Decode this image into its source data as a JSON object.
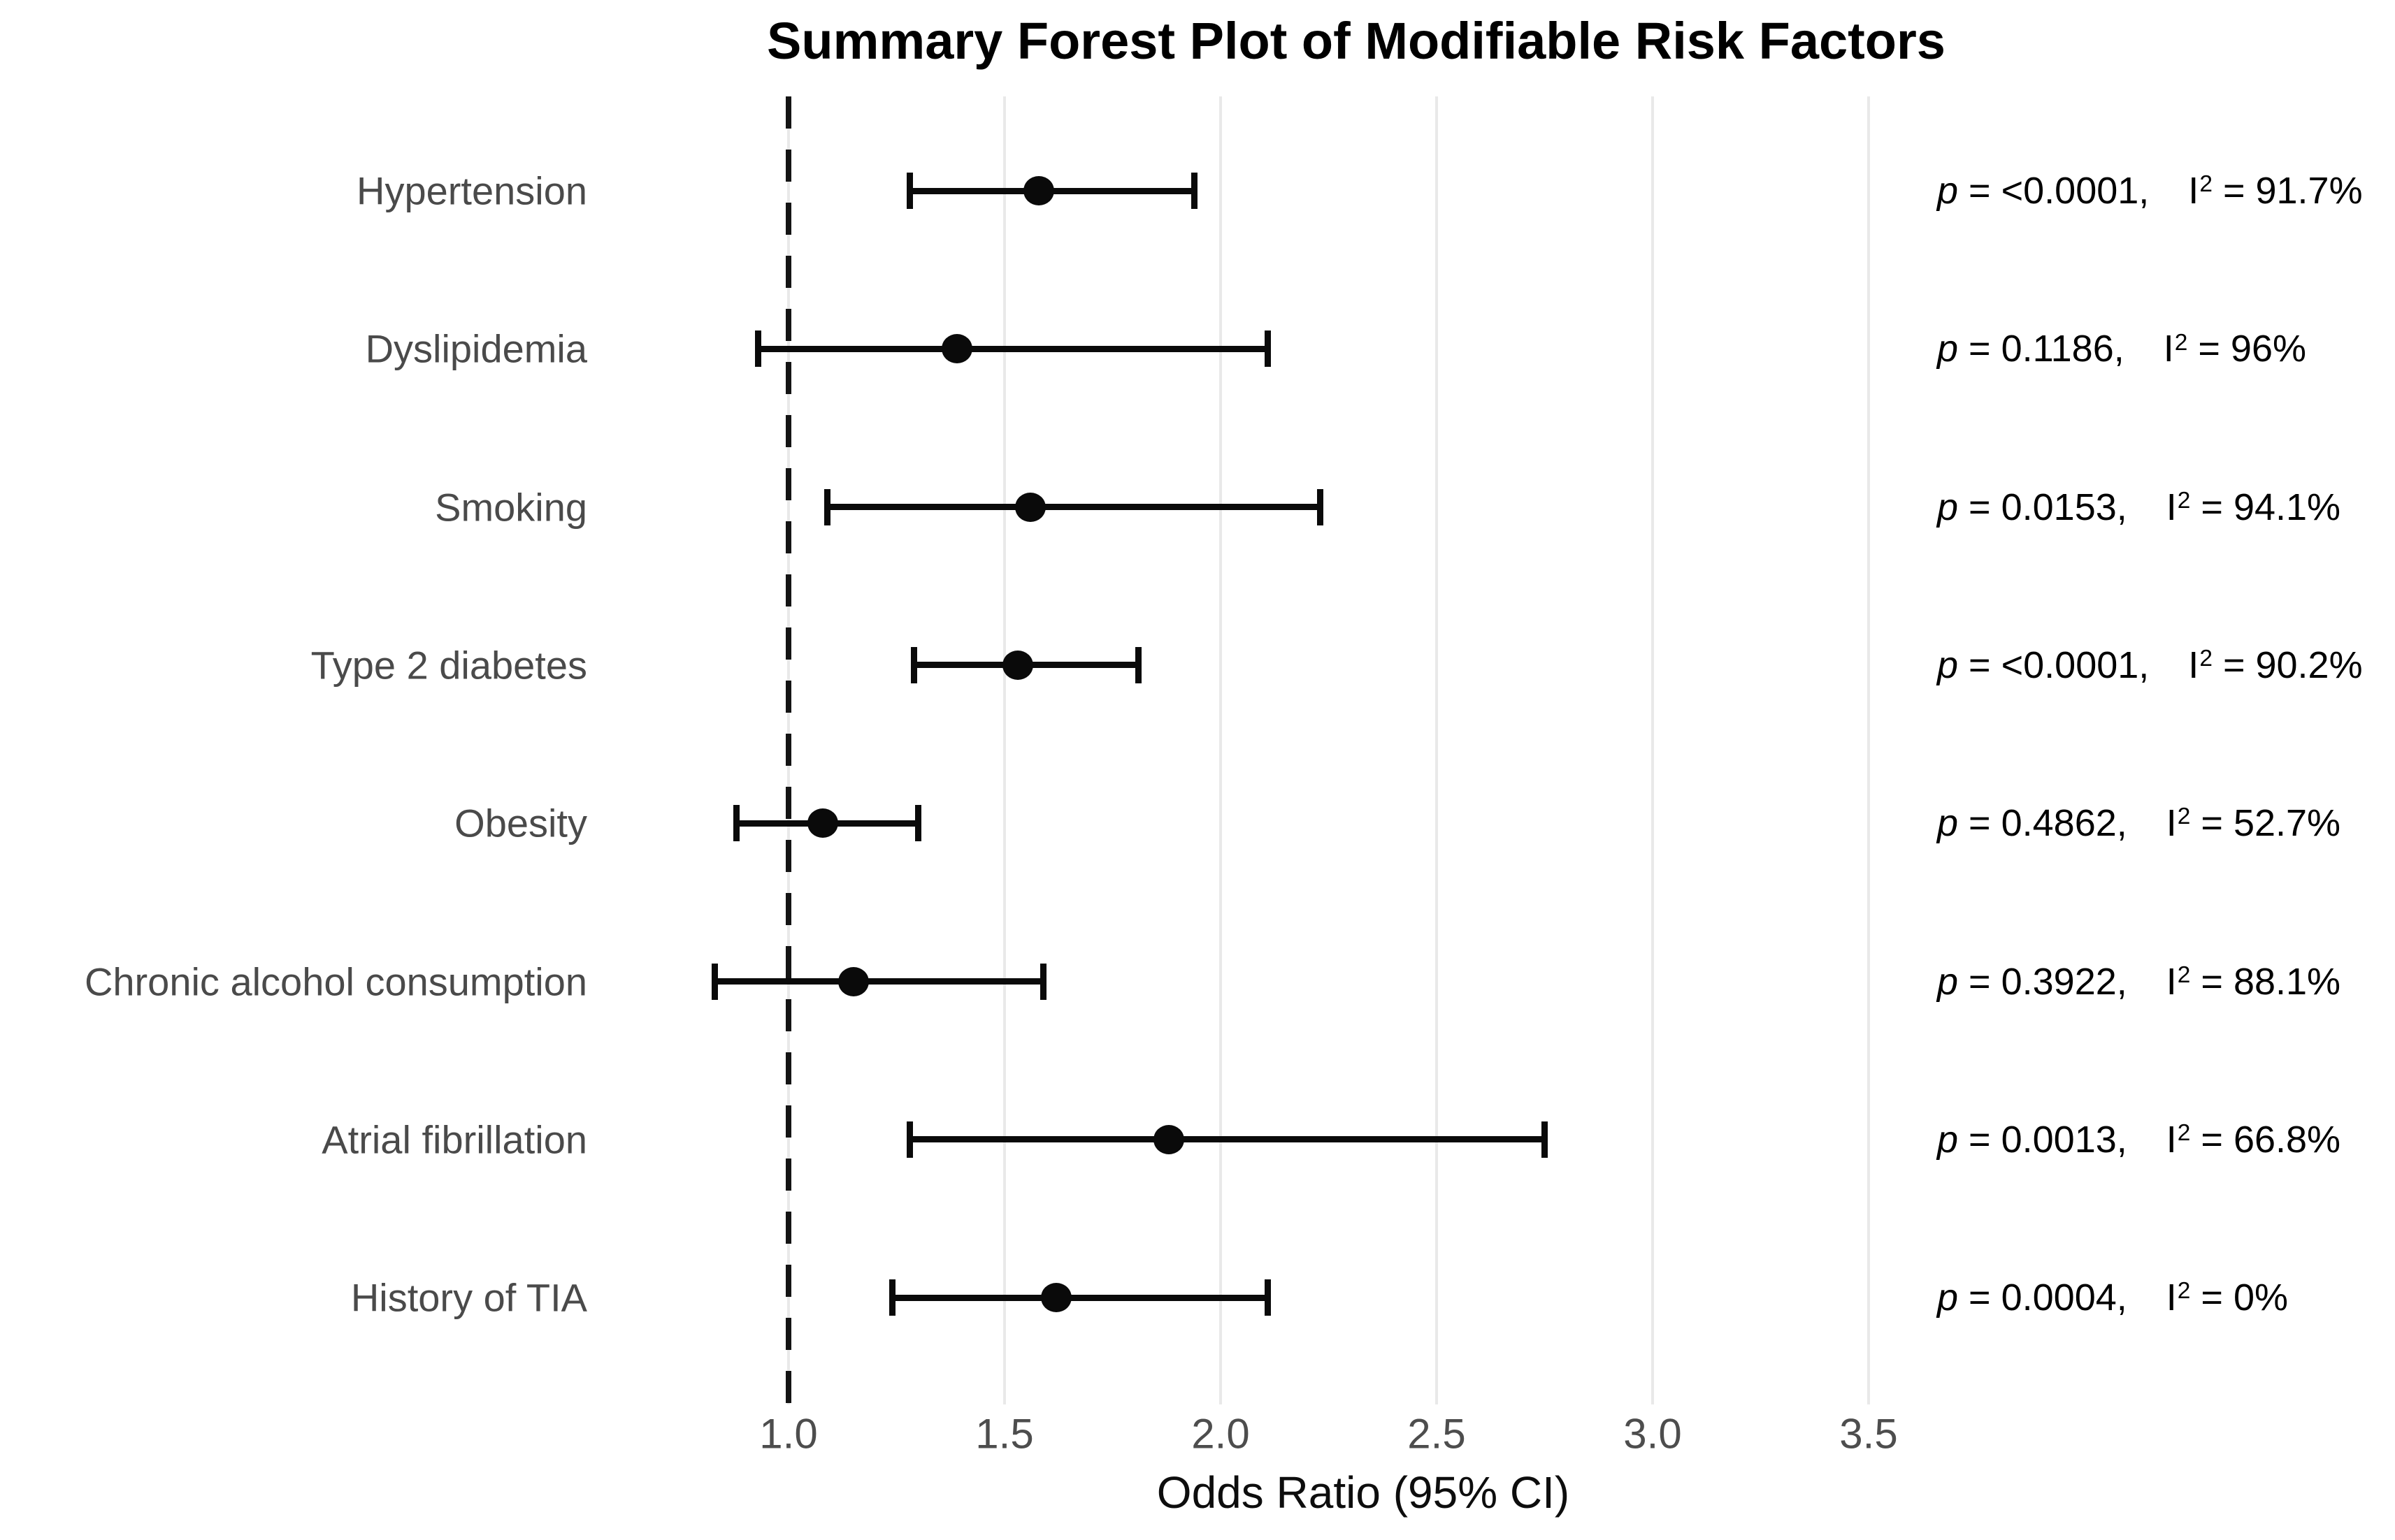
{
  "chart_data": {
    "type": "forest_plot",
    "title": "Summary Forest Plot of Modifiable Risk Factors",
    "xlabel": "Odds Ratio (95% CI)",
    "x_ticks": [
      1.0,
      1.5,
      2.0,
      2.5,
      3.0,
      3.5
    ],
    "x_tick_labels": [
      "1.0",
      "1.5",
      "2.0",
      "2.5",
      "3.0",
      "3.5"
    ],
    "xlim": [
      0.58,
      3.72
    ],
    "grid": "vertical-major-only",
    "reference_line": {
      "x": 1.0,
      "style": "dashed",
      "color": "#141414"
    },
    "point_color": "#0a0a0a",
    "rows": [
      {
        "label": "Hypertension",
        "or": 1.58,
        "ci_low": 1.28,
        "ci_high": 1.94,
        "p": "<0.0001",
        "i2": "91.7%"
      },
      {
        "label": "Dyslipidemia",
        "or": 1.39,
        "ci_low": 0.93,
        "ci_high": 2.11,
        "p": "0.1186",
        "i2": "96%"
      },
      {
        "label": "Smoking",
        "or": 1.56,
        "ci_low": 1.09,
        "ci_high": 2.23,
        "p": "0.0153",
        "i2": "94.1%"
      },
      {
        "label": "Type 2 diabetes",
        "or": 1.53,
        "ci_low": 1.29,
        "ci_high": 1.81,
        "p": "<0.0001",
        "i2": "90.2%"
      },
      {
        "label": "Obesity",
        "or": 1.08,
        "ci_low": 0.88,
        "ci_high": 1.3,
        "p": "0.4862",
        "i2": "52.7%"
      },
      {
        "label": "Chronic alcohol consumption",
        "or": 1.15,
        "ci_low": 0.83,
        "ci_high": 1.59,
        "p": "0.3922",
        "i2": "88.1%"
      },
      {
        "label": "Atrial fibrillation",
        "or": 1.88,
        "ci_low": 1.28,
        "ci_high": 2.75,
        "p": "0.0013",
        "i2": "66.8%"
      },
      {
        "label": "History of TIA",
        "or": 1.62,
        "ci_low": 1.24,
        "ci_high": 2.11,
        "p": "0.0004",
        "i2": "0%"
      }
    ],
    "annotation_format": {
      "p_prefix": "p",
      "p_equals": " = ",
      "p_suffix": ",",
      "i2_prefix": "I",
      "i2_sup": "2",
      "i2_equals": " = "
    }
  }
}
